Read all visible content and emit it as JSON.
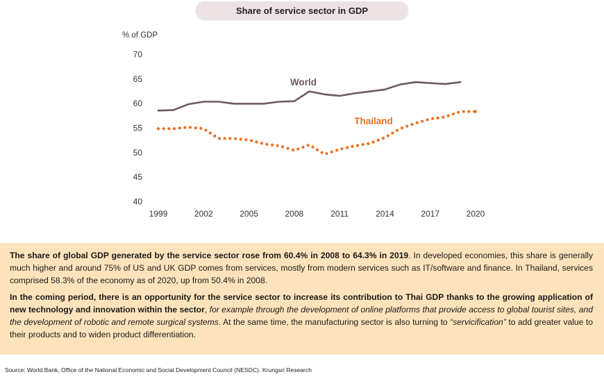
{
  "chart_data": {
    "type": "line",
    "title": "Share of service sector in GDP",
    "ylabel": "% of GDP",
    "xlabel": "",
    "ylim": [
      40,
      70
    ],
    "yticks": [
      40,
      45,
      50,
      55,
      60,
      65,
      70
    ],
    "xlim": [
      1999,
      2020
    ],
    "xticks": [
      1999,
      2002,
      2005,
      2008,
      2011,
      2014,
      2017,
      2020
    ],
    "grid": false,
    "legend": "inline labels",
    "series": [
      {
        "name": "World",
        "style": "solid",
        "color": "#6d5a5c",
        "x": [
          1999,
          2000,
          2001,
          2002,
          2003,
          2004,
          2005,
          2006,
          2007,
          2008,
          2009,
          2010,
          2011,
          2012,
          2013,
          2014,
          2015,
          2016,
          2017,
          2018,
          2019
        ],
        "values": [
          58.5,
          58.6,
          59.8,
          60.3,
          60.3,
          59.9,
          59.9,
          59.9,
          60.3,
          60.4,
          62.4,
          61.8,
          61.5,
          62.0,
          62.4,
          62.8,
          63.8,
          64.3,
          64.1,
          63.9,
          64.3
        ]
      },
      {
        "name": "Thailand",
        "style": "dotted",
        "color": "#e96f1f",
        "x": [
          1999,
          2000,
          2001,
          2002,
          2003,
          2004,
          2005,
          2006,
          2007,
          2008,
          2009,
          2010,
          2011,
          2012,
          2013,
          2014,
          2015,
          2016,
          2017,
          2018,
          2019,
          2020
        ],
        "values": [
          54.8,
          54.8,
          55.1,
          54.8,
          52.8,
          52.8,
          52.5,
          51.7,
          51.3,
          50.4,
          51.5,
          49.6,
          50.6,
          51.3,
          51.8,
          53.0,
          54.8,
          55.9,
          56.8,
          57.2,
          58.3,
          58.3
        ]
      }
    ]
  },
  "text_box": {
    "p1_bold": "The share of global GDP generated by the service sector rose from 60.4% in 2008 to 64.3% in 2019",
    "p1_rest": ". In developed economies, this share is generally much higher and around 75% of US and UK GDP comes from services, mostly from modern services such as IT/software and finance. In Thailand, services comprised 58.3% of the economy as of 2020, up from 50.4% in 2008.",
    "p2_bold": "In the coming period, there is an opportunity for the service sector to increase its contribution to Thai GDP thanks to the growing application of new technology and innovation within the sector",
    "p2_sep": ", ",
    "p2_italic": "for example through the development of online platforms that provide access to global tourist sites, and the development of robotic and remote surgical systems",
    "p2_mid": ". At the same time, the manufacturing sector is also turning to ",
    "p2_quote": "“servicification”",
    "p2_end": " to add greater value to their products and to widen product differentiation."
  },
  "source": "Source: World Bank, Office of the National Economic and Social Development Council (NESDC), Krungsri Research",
  "colors": {
    "title_pill": "#ece2e3",
    "text_box": "#fde3bb",
    "world": "#6d5a5c",
    "thailand": "#e96f1f"
  }
}
